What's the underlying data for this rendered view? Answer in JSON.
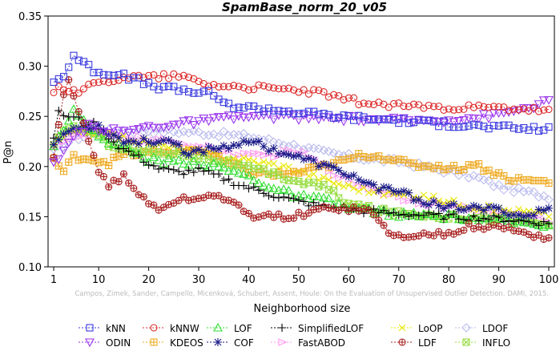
{
  "chart_data": {
    "type": "line",
    "title": "SpamBase_norm_20_v05",
    "xlabel": "Neighborhood size",
    "ylabel": "P@n",
    "xlim": [
      1,
      100
    ],
    "ylim": [
      0.1,
      0.35
    ],
    "xticks": [
      1,
      10,
      20,
      30,
      40,
      50,
      60,
      70,
      80,
      90,
      100
    ],
    "yticks": [
      0.1,
      0.15,
      0.2,
      0.25,
      0.3,
      0.35
    ],
    "ytick_labels": [
      "0.10",
      "0.15",
      "0.20",
      "0.25",
      "0.30",
      "0.35"
    ],
    "grid": false,
    "legend_position": "bottom",
    "watermark": "Campos, Zimek, Sander, Campello, Micenková, Schubert, Assent, Houle: On the Evaluation of Unsupervised Outlier Detection. DAMI, 2015.",
    "series": [
      {
        "name": "kNN",
        "color": "#3a3adf",
        "marker": "square",
        "dash": "2,2",
        "keypoints": [
          [
            1,
            0.285
          ],
          [
            3,
            0.29
          ],
          [
            5,
            0.311
          ],
          [
            7,
            0.303
          ],
          [
            9,
            0.296
          ],
          [
            12,
            0.293
          ],
          [
            15,
            0.29
          ],
          [
            18,
            0.286
          ],
          [
            20,
            0.281
          ],
          [
            25,
            0.277
          ],
          [
            30,
            0.274
          ],
          [
            33,
            0.272
          ],
          [
            35,
            0.262
          ],
          [
            40,
            0.259
          ],
          [
            45,
            0.257
          ],
          [
            50,
            0.254
          ],
          [
            60,
            0.249
          ],
          [
            70,
            0.246
          ],
          [
            80,
            0.242
          ],
          [
            90,
            0.239
          ],
          [
            100,
            0.237
          ]
        ]
      },
      {
        "name": "kNNW",
        "color": "#dd2a2a",
        "marker": "circle",
        "dash": "2,2",
        "keypoints": [
          [
            1,
            0.276
          ],
          [
            3,
            0.278
          ],
          [
            6,
            0.276
          ],
          [
            10,
            0.283
          ],
          [
            15,
            0.29
          ],
          [
            20,
            0.289
          ],
          [
            25,
            0.291
          ],
          [
            28,
            0.288
          ],
          [
            32,
            0.282
          ],
          [
            40,
            0.279
          ],
          [
            50,
            0.276
          ],
          [
            55,
            0.273
          ],
          [
            58,
            0.268
          ],
          [
            65,
            0.262
          ],
          [
            70,
            0.261
          ],
          [
            80,
            0.259
          ],
          [
            90,
            0.258
          ],
          [
            95,
            0.257
          ],
          [
            100,
            0.255
          ]
        ]
      },
      {
        "name": "LOF",
        "color": "#33dd33",
        "marker": "triangle-up",
        "dash": "2,2",
        "keypoints": [
          [
            1,
            0.223
          ],
          [
            3,
            0.238
          ],
          [
            5,
            0.256
          ],
          [
            7,
            0.244
          ],
          [
            10,
            0.23
          ],
          [
            15,
            0.219
          ],
          [
            20,
            0.207
          ],
          [
            25,
            0.205
          ],
          [
            30,
            0.204
          ],
          [
            35,
            0.198
          ],
          [
            40,
            0.19
          ],
          [
            45,
            0.178
          ],
          [
            50,
            0.17
          ],
          [
            55,
            0.167
          ],
          [
            60,
            0.158
          ],
          [
            65,
            0.156
          ],
          [
            70,
            0.152
          ],
          [
            80,
            0.15
          ],
          [
            90,
            0.146
          ],
          [
            100,
            0.142
          ]
        ]
      },
      {
        "name": "SimplifiedLOF",
        "color": "#000000",
        "marker": "plus",
        "dash": "2,2",
        "keypoints": [
          [
            1,
            0.23
          ],
          [
            2,
            0.253
          ],
          [
            4,
            0.25
          ],
          [
            6,
            0.247
          ],
          [
            10,
            0.24
          ],
          [
            14,
            0.22
          ],
          [
            18,
            0.209
          ],
          [
            22,
            0.198
          ],
          [
            26,
            0.194
          ],
          [
            30,
            0.196
          ],
          [
            34,
            0.19
          ],
          [
            38,
            0.182
          ],
          [
            42,
            0.176
          ],
          [
            46,
            0.17
          ],
          [
            50,
            0.165
          ],
          [
            55,
            0.16
          ],
          [
            60,
            0.157
          ],
          [
            65,
            0.155
          ],
          [
            70,
            0.153
          ],
          [
            80,
            0.15
          ],
          [
            90,
            0.148
          ],
          [
            100,
            0.143
          ]
        ]
      },
      {
        "name": "LoOP",
        "color": "#e8e800",
        "marker": "x",
        "dash": "2,2",
        "keypoints": [
          [
            1,
            0.222
          ],
          [
            4,
            0.232
          ],
          [
            8,
            0.234
          ],
          [
            12,
            0.232
          ],
          [
            16,
            0.227
          ],
          [
            20,
            0.222
          ],
          [
            25,
            0.218
          ],
          [
            30,
            0.214
          ],
          [
            35,
            0.21
          ],
          [
            40,
            0.206
          ],
          [
            45,
            0.202
          ],
          [
            50,
            0.196
          ],
          [
            55,
            0.187
          ],
          [
            60,
            0.18
          ],
          [
            65,
            0.175
          ],
          [
            70,
            0.172
          ],
          [
            75,
            0.17
          ],
          [
            80,
            0.165
          ],
          [
            85,
            0.16
          ],
          [
            90,
            0.157
          ],
          [
            95,
            0.155
          ],
          [
            100,
            0.152
          ]
        ]
      },
      {
        "name": "LDOF",
        "color": "#bbbbee",
        "marker": "diamond",
        "dash": "2,2",
        "keypoints": [
          [
            1,
            0.215
          ],
          [
            5,
            0.228
          ],
          [
            10,
            0.233
          ],
          [
            15,
            0.236
          ],
          [
            20,
            0.236
          ],
          [
            25,
            0.235
          ],
          [
            30,
            0.234
          ],
          [
            35,
            0.232
          ],
          [
            40,
            0.23
          ],
          [
            45,
            0.225
          ],
          [
            50,
            0.22
          ],
          [
            55,
            0.214
          ],
          [
            60,
            0.21
          ],
          [
            65,
            0.207
          ],
          [
            70,
            0.205
          ],
          [
            75,
            0.2
          ],
          [
            80,
            0.195
          ],
          [
            85,
            0.19
          ],
          [
            90,
            0.18
          ],
          [
            95,
            0.175
          ],
          [
            100,
            0.17
          ]
        ]
      },
      {
        "name": "ODIN",
        "color": "#9933ee",
        "marker": "triangle-down",
        "dash": "2,2",
        "keypoints": [
          [
            1,
            0.202
          ],
          [
            3,
            0.213
          ],
          [
            5,
            0.23
          ],
          [
            8,
            0.24
          ],
          [
            12,
            0.236
          ],
          [
            16,
            0.235
          ],
          [
            20,
            0.24
          ],
          [
            25,
            0.242
          ],
          [
            30,
            0.245
          ],
          [
            35,
            0.248
          ],
          [
            40,
            0.25
          ],
          [
            45,
            0.25
          ],
          [
            50,
            0.249
          ],
          [
            55,
            0.248
          ],
          [
            60,
            0.248
          ],
          [
            65,
            0.247
          ],
          [
            70,
            0.246
          ],
          [
            75,
            0.246
          ],
          [
            80,
            0.247
          ],
          [
            85,
            0.249
          ],
          [
            90,
            0.252
          ],
          [
            95,
            0.258
          ],
          [
            100,
            0.265
          ]
        ]
      },
      {
        "name": "KDEOS",
        "color": "#eeaa22",
        "marker": "square-cross",
        "dash": "2,2",
        "keypoints": [
          [
            1,
            0.208
          ],
          [
            3,
            0.194
          ],
          [
            5,
            0.21
          ],
          [
            8,
            0.208
          ],
          [
            10,
            0.206
          ],
          [
            12,
            0.204
          ],
          [
            15,
            0.212
          ],
          [
            20,
            0.213
          ],
          [
            25,
            0.215
          ],
          [
            30,
            0.217
          ],
          [
            35,
            0.205
          ],
          [
            40,
            0.195
          ],
          [
            45,
            0.192
          ],
          [
            50,
            0.194
          ],
          [
            55,
            0.2
          ],
          [
            60,
            0.207
          ],
          [
            63,
            0.212
          ],
          [
            68,
            0.209
          ],
          [
            72,
            0.202
          ],
          [
            78,
            0.2
          ],
          [
            82,
            0.198
          ],
          [
            85,
            0.203
          ],
          [
            88,
            0.196
          ],
          [
            92,
            0.188
          ],
          [
            96,
            0.186
          ],
          [
            100,
            0.185
          ]
        ]
      },
      {
        "name": "COF",
        "color": "#1a1a88",
        "marker": "asterisk",
        "dash": "2,2",
        "keypoints": [
          [
            1,
            0.222
          ],
          [
            3,
            0.232
          ],
          [
            6,
            0.24
          ],
          [
            10,
            0.24
          ],
          [
            15,
            0.225
          ],
          [
            20,
            0.225
          ],
          [
            25,
            0.226
          ],
          [
            28,
            0.212
          ],
          [
            32,
            0.218
          ],
          [
            36,
            0.22
          ],
          [
            40,
            0.227
          ],
          [
            44,
            0.218
          ],
          [
            48,
            0.212
          ],
          [
            52,
            0.206
          ],
          [
            56,
            0.199
          ],
          [
            60,
            0.192
          ],
          [
            65,
            0.18
          ],
          [
            70,
            0.175
          ],
          [
            75,
            0.165
          ],
          [
            80,
            0.16
          ],
          [
            85,
            0.158
          ],
          [
            90,
            0.157
          ],
          [
            95,
            0.15
          ],
          [
            100,
            0.158
          ]
        ]
      },
      {
        "name": "FastABOD",
        "color": "#ff99ee",
        "marker": "triangle-right",
        "dash": "2,2",
        "keypoints": [
          [
            1,
            0.222
          ],
          [
            5,
            0.23
          ],
          [
            10,
            0.232
          ],
          [
            15,
            0.23
          ],
          [
            20,
            0.226
          ],
          [
            25,
            0.224
          ],
          [
            30,
            0.22
          ],
          [
            35,
            0.215
          ],
          [
            40,
            0.21
          ],
          [
            45,
            0.212
          ],
          [
            50,
            0.215
          ],
          [
            55,
            0.2
          ],
          [
            60,
            0.185
          ],
          [
            65,
            0.178
          ],
          [
            70,
            0.17
          ],
          [
            75,
            0.165
          ],
          [
            80,
            0.16
          ],
          [
            85,
            0.156
          ],
          [
            90,
            0.154
          ],
          [
            95,
            0.15
          ],
          [
            100,
            0.147
          ]
        ]
      },
      {
        "name": "LDF",
        "color": "#aa2222",
        "marker": "circle-plus",
        "dash": "2,2",
        "keypoints": [
          [
            1,
            0.208
          ],
          [
            3,
            0.27
          ],
          [
            4,
            0.285
          ],
          [
            6,
            0.255
          ],
          [
            8,
            0.228
          ],
          [
            10,
            0.195
          ],
          [
            12,
            0.182
          ],
          [
            15,
            0.19
          ],
          [
            17,
            0.178
          ],
          [
            20,
            0.163
          ],
          [
            22,
            0.158
          ],
          [
            25,
            0.165
          ],
          [
            28,
            0.168
          ],
          [
            30,
            0.167
          ],
          [
            33,
            0.173
          ],
          [
            36,
            0.166
          ],
          [
            40,
            0.152
          ],
          [
            44,
            0.15
          ],
          [
            48,
            0.15
          ],
          [
            52,
            0.153
          ],
          [
            56,
            0.16
          ],
          [
            60,
            0.158
          ],
          [
            64,
            0.156
          ],
          [
            68,
            0.135
          ],
          [
            72,
            0.128
          ],
          [
            76,
            0.133
          ],
          [
            80,
            0.134
          ],
          [
            84,
            0.14
          ],
          [
            88,
            0.14
          ],
          [
            92,
            0.138
          ],
          [
            96,
            0.133
          ],
          [
            100,
            0.128
          ]
        ]
      },
      {
        "name": "INFLO",
        "color": "#99dd44",
        "marker": "hourglass",
        "dash": "2,2",
        "keypoints": [
          [
            1,
            0.22
          ],
          [
            4,
            0.24
          ],
          [
            8,
            0.236
          ],
          [
            12,
            0.223
          ],
          [
            16,
            0.217
          ],
          [
            20,
            0.214
          ],
          [
            25,
            0.214
          ],
          [
            30,
            0.21
          ],
          [
            35,
            0.205
          ],
          [
            40,
            0.198
          ],
          [
            45,
            0.192
          ],
          [
            50,
            0.185
          ],
          [
            55,
            0.18
          ],
          [
            60,
            0.163
          ],
          [
            65,
            0.157
          ],
          [
            70,
            0.153
          ],
          [
            75,
            0.152
          ],
          [
            80,
            0.15
          ],
          [
            85,
            0.149
          ],
          [
            90,
            0.147
          ],
          [
            95,
            0.146
          ],
          [
            100,
            0.142
          ]
        ]
      }
    ],
    "legend_order": [
      "kNN",
      "kNNW",
      "LOF",
      "SimplifiedLOF",
      "LoOP",
      "LDOF",
      "ODIN",
      "KDEOS",
      "COF",
      "FastABOD",
      "LDF",
      "INFLO"
    ]
  }
}
